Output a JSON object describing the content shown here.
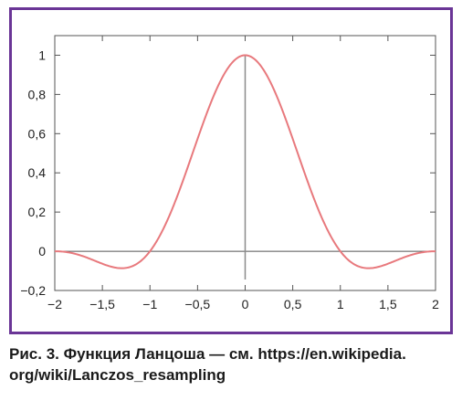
{
  "chart_data": {
    "type": "line",
    "function": "lanczos",
    "lanczos_a": 2,
    "xlim": [
      -2,
      2
    ],
    "ylim": [
      -0.2,
      1.1
    ],
    "x_ticks": [
      -2,
      -1.5,
      -1,
      -0.5,
      0,
      0.5,
      1,
      1.5,
      2
    ],
    "x_tick_labels": [
      "−2",
      "−1,5",
      "−1",
      "−0,5",
      "0",
      "0,5",
      "1",
      "1,5",
      "2"
    ],
    "y_ticks": [
      -0.2,
      0,
      0.2,
      0.4,
      0.6,
      0.8,
      1
    ],
    "y_tick_labels": [
      "−0,2",
      "0",
      "0,2",
      "0,4",
      "0,6",
      "0,8",
      "1"
    ],
    "grid": false,
    "x": [
      -2,
      -1.75,
      -1.5,
      -1.25,
      -1,
      -0.75,
      -0.5,
      -0.25,
      0,
      0.25,
      0.5,
      0.75,
      1,
      1.25,
      1.5,
      1.75,
      2
    ],
    "y": [
      0,
      -0.034,
      -0.085,
      -0.092,
      0,
      0.26,
      0.61,
      0.9,
      1,
      0.9,
      0.61,
      0.26,
      0,
      -0.092,
      -0.085,
      -0.034,
      0
    ]
  },
  "colors": {
    "frame": "#6a3596",
    "curve": "#e8797d",
    "axis": "#555555",
    "center_line": "#8a8a8a",
    "text": "#222222"
  },
  "caption": {
    "line1": "Рис. 3. Функция Ланцоша — см. https://en.wikipedia.",
    "line2": "org/wiki/Lanczos_resampling"
  }
}
